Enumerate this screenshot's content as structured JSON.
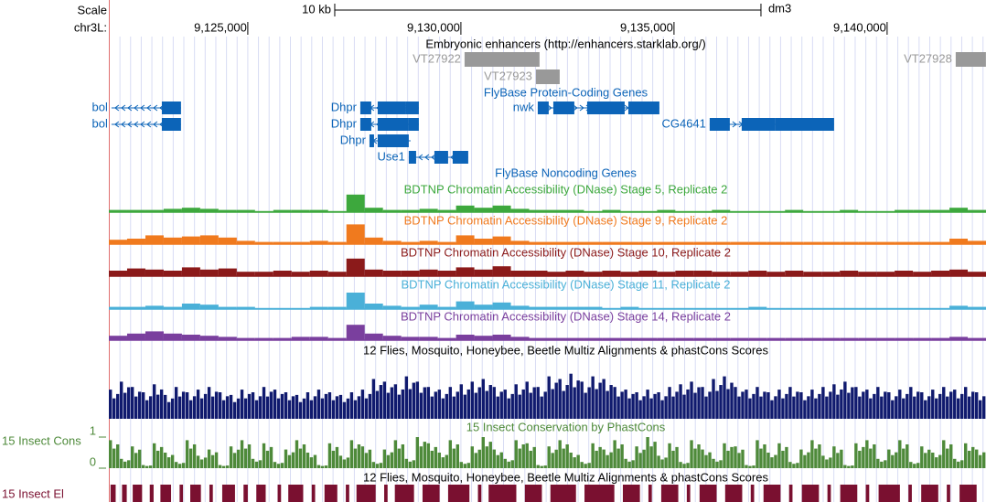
{
  "header": {
    "scale_label": "Scale",
    "chrom_label": "chr3L:",
    "assembly": "dm3"
  },
  "ruler": {
    "xlim": [
      9121740,
      9142320
    ],
    "xticks": [
      {
        "value": 9125000,
        "label": "9,125,000"
      },
      {
        "value": 9130000,
        "label": "9,130,000"
      },
      {
        "value": 9135000,
        "label": "9,135,000"
      },
      {
        "value": 9140000,
        "label": "9,140,000"
      }
    ],
    "scale_bar": {
      "label": "10 kb",
      "start": 9127040,
      "end": 9137040
    }
  },
  "tracks": [
    {
      "type": "bed",
      "title": "Embryonic enhancers (http://enhancers.starklab.org/)",
      "color": "#999999",
      "features": [
        {
          "name": "VT27922",
          "start": 9130086,
          "end": 9131845
        },
        {
          "name": "VT27923",
          "start": 9131760,
          "end": 9132318
        },
        {
          "name": "VT27928",
          "start": 9141609,
          "end": 9142318
        }
      ]
    },
    {
      "type": "genes",
      "title": "FlyBase Protein-Coding Genes",
      "color": "#0c64b8",
      "genes": [
        {
          "name": "bol",
          "strand": "-",
          "start": 9121802,
          "end": 9123433,
          "exons": [
            [
              9122983,
              9123433
            ]
          ]
        },
        {
          "name": "bol",
          "strand": "-",
          "start": 9121802,
          "end": 9123433,
          "exons": [
            [
              9122983,
              9123433
            ]
          ]
        },
        {
          "name": "Dhpr",
          "strand": "-",
          "start": 9127640,
          "end": 9129013,
          "exons": [
            [
              9127640,
              9127897
            ],
            [
              9128047,
              9128713
            ],
            [
              9128713,
              9129013
            ]
          ]
        },
        {
          "name": "Dhpr",
          "strand": "-",
          "start": 9127640,
          "end": 9129013,
          "exons": [
            [
              9127640,
              9127897
            ],
            [
              9128047,
              9128777
            ],
            [
              9128777,
              9129013
            ]
          ]
        },
        {
          "name": "Dhpr",
          "strand": "-",
          "start": 9127855,
          "end": 9128820,
          "exons": [
            [
              9127855,
              9127962
            ],
            [
              9128047,
              9128777
            ]
          ]
        },
        {
          "name": "Use1",
          "strand": "-",
          "start": 9128777,
          "end": 9130172,
          "exons": [
            [
              9128777,
              9128949
            ],
            [
              9129378,
              9129700
            ],
            [
              9129807,
              9130172
            ]
          ]
        },
        {
          "name": "nwk",
          "strand": "+",
          "start": 9131803,
          "end": 9134657,
          "exons": [
            [
              9131803,
              9132060
            ],
            [
              9132168,
              9132661
            ],
            [
              9132962,
              9133842
            ],
            [
              9133928,
              9134657
            ]
          ]
        },
        {
          "name": "CG4641",
          "strand": "+",
          "start": 9135837,
          "end": 9138756,
          "exons": [
            [
              9135837,
              9136309
            ],
            [
              9136588,
              9137382
            ],
            [
              9137382,
              9138756
            ]
          ]
        }
      ]
    },
    {
      "type": "genes",
      "title": "FlyBase Noncoding Genes",
      "color": "#0c64b8",
      "genes": []
    },
    {
      "type": "wiggle",
      "title": "BDTNP Chromatin Accessibility (DNase) Stage 5, Replicate 2",
      "color": "#3da83d",
      "values": [
        2,
        2,
        2,
        3,
        4,
        3,
        2,
        2,
        1,
        2,
        2,
        2,
        1,
        16,
        4,
        2,
        2,
        3,
        2,
        6,
        4,
        6,
        3,
        2,
        2,
        2,
        1,
        2,
        1,
        1,
        2,
        1,
        1,
        2,
        1,
        1,
        1,
        2,
        1,
        1,
        2,
        1,
        1,
        2,
        2,
        2,
        4,
        2
      ]
    },
    {
      "type": "wiggle",
      "title": "BDTNP Chromatin Accessibility (DNase) Stage 9, Replicate 2",
      "color": "#f07a1e",
      "values": [
        4,
        5,
        8,
        6,
        7,
        8,
        6,
        3,
        2,
        2,
        2,
        3,
        2,
        18,
        6,
        3,
        2,
        3,
        2,
        8,
        5,
        7,
        3,
        2,
        2,
        2,
        2,
        2,
        2,
        2,
        2,
        2,
        2,
        2,
        2,
        2,
        2,
        2,
        2,
        2,
        2,
        2,
        2,
        2,
        2,
        2,
        5,
        3
      ]
    },
    {
      "type": "wiggle",
      "title": "BDTNP Chromatin Accessibility (DNase) Stage 10, Replicate 2",
      "color": "#8b1a1a",
      "values": [
        5,
        7,
        6,
        5,
        8,
        6,
        7,
        4,
        4,
        5,
        4,
        5,
        4,
        16,
        6,
        5,
        5,
        6,
        5,
        8,
        6,
        9,
        5,
        5,
        4,
        5,
        4,
        5,
        4,
        5,
        4,
        5,
        5,
        4,
        4,
        5,
        4,
        5,
        4,
        4,
        5,
        4,
        4,
        5,
        4,
        5,
        6,
        4
      ]
    },
    {
      "type": "wiggle",
      "title": "BDTNP Chromatin Accessibility (DNase) Stage 11, Replicate 2",
      "color": "#4ab0d8",
      "values": [
        2,
        2,
        3,
        2,
        5,
        4,
        2,
        2,
        1,
        1,
        1,
        2,
        2,
        15,
        5,
        3,
        2,
        4,
        2,
        7,
        4,
        6,
        3,
        2,
        2,
        2,
        2,
        1,
        2,
        1,
        1,
        1,
        1,
        1,
        1,
        2,
        1,
        1,
        1,
        1,
        1,
        1,
        1,
        1,
        1,
        1,
        3,
        2
      ]
    },
    {
      "type": "wiggle",
      "title": "BDTNP Chromatin Accessibility (DNase) Stage 14, Replicate 2",
      "color": "#7a3f9e",
      "values": [
        4,
        6,
        8,
        6,
        5,
        4,
        3,
        2,
        2,
        2,
        3,
        3,
        2,
        14,
        6,
        4,
        3,
        3,
        2,
        5,
        4,
        5,
        3,
        2,
        2,
        2,
        2,
        2,
        2,
        2,
        2,
        2,
        2,
        2,
        2,
        2,
        2,
        2,
        2,
        2,
        2,
        2,
        2,
        2,
        2,
        2,
        3,
        2
      ]
    },
    {
      "type": "bars",
      "title": "12 Flies, Mosquito, Honeybee, Beetle Multiz Alignments & phastCons Scores",
      "color": "#101a6e",
      "values": [
        0.55,
        0.7,
        0.6,
        0.5,
        0.65,
        0.45,
        0.6,
        0.5,
        0.55,
        0.6,
        0.5,
        0.45,
        0.55,
        0.5,
        0.6,
        0.55,
        0.5,
        0.45,
        0.5,
        0.55,
        0.5,
        0.45,
        0.5,
        0.55,
        0.75,
        0.7,
        0.65,
        0.8,
        0.7,
        0.6,
        0.55,
        0.6,
        0.65,
        0.7,
        0.75,
        0.6,
        0.55,
        0.65,
        0.7,
        0.6,
        0.8,
        0.75,
        0.85,
        0.7,
        0.8,
        0.75,
        0.6,
        0.55,
        0.5,
        0.55,
        0.5,
        0.6,
        0.65,
        0.7,
        0.6,
        0.75,
        0.8,
        0.6,
        0.55,
        0.6,
        0.5,
        0.55,
        0.6,
        0.5,
        0.55,
        0.6,
        0.65,
        0.7,
        0.6,
        0.55,
        0.6,
        0.5,
        0.55,
        0.6,
        0.5,
        0.55,
        0.6,
        0.55,
        0.6,
        0.5
      ]
    },
    {
      "type": "bars",
      "title": "15 Insect Conservation by PhastCons",
      "side_label": "15 Insect Cons",
      "color": "#4e8a3a",
      "ylim": [
        0,
        1
      ],
      "yticks": [
        0,
        1
      ],
      "values": [
        0.9,
        0.3,
        0.7,
        0.1,
        0.8,
        0.5,
        0.2,
        0.9,
        0.4,
        0.6,
        0.1,
        0.7,
        0.9,
        0.3,
        0.8,
        0.2,
        0.6,
        0.9,
        0.5,
        0.1,
        0.8,
        0.4,
        0.9,
        0.7,
        0.2,
        0.6,
        0.9,
        0.3,
        1,
        0.8,
        0.5,
        0.9,
        0.2,
        0.7,
        1,
        0.6,
        0.3,
        0.9,
        0.8,
        0.1,
        0.7,
        0.9,
        0.5,
        0.2,
        0.8,
        0.6,
        0.9,
        0.3,
        0.7,
        1,
        0.4,
        0.8,
        0.2,
        0.9,
        0.6,
        0.3,
        0.8,
        0.7,
        0.1,
        0.9,
        0.5,
        0.8,
        0.2,
        0.6,
        0.9,
        0.4,
        0.7,
        0.1,
        0.8,
        0.9,
        0.3,
        0.6,
        0.9,
        0.2,
        0.7,
        0.5,
        0.9,
        0.3,
        0.8,
        0.6
      ]
    },
    {
      "type": "elements",
      "title": "12 Flies, Mosquito, Honeybee, Beetle Multiz Alignments & phastCons Scores",
      "side_label": "15 Insect El",
      "color": "#7a1030",
      "features": [
        [
          9121780,
          9121900
        ],
        [
          9122050,
          9122160
        ],
        [
          9122300,
          9122520
        ],
        [
          9122700,
          9122790
        ],
        [
          9122950,
          9123200
        ],
        [
          9123400,
          9123480
        ],
        [
          9123650,
          9123900
        ],
        [
          9124100,
          9124180
        ],
        [
          9124400,
          9124700
        ],
        [
          9124900,
          9125000
        ],
        [
          9125200,
          9125420
        ],
        [
          9125700,
          9125780
        ],
        [
          9125950,
          9126300
        ],
        [
          9126500,
          9126580
        ],
        [
          9126800,
          9127100
        ],
        [
          9127300,
          9127380
        ],
        [
          9127550,
          9128000
        ],
        [
          9128200,
          9128280
        ],
        [
          9128450,
          9128900
        ],
        [
          9129100,
          9129500
        ],
        [
          9129700,
          9130200
        ],
        [
          9130400,
          9130480
        ],
        [
          9130650,
          9131300
        ],
        [
          9131500,
          9131900
        ],
        [
          9132100,
          9132700
        ],
        [
          9132900,
          9133600
        ],
        [
          9133800,
          9134200
        ],
        [
          9134400,
          9134480
        ],
        [
          9134700,
          9135100
        ],
        [
          9135300,
          9135380
        ],
        [
          9135600,
          9136000
        ],
        [
          9136200,
          9136600
        ],
        [
          9136800,
          9136880
        ],
        [
          9137100,
          9137500
        ],
        [
          9137700,
          9137780
        ],
        [
          9138000,
          9138400
        ],
        [
          9138600,
          9138680
        ],
        [
          9138900,
          9139300
        ],
        [
          9139500,
          9139580
        ],
        [
          9139800,
          9140300
        ],
        [
          9140500,
          9140580
        ],
        [
          9140800,
          9141200
        ],
        [
          9141400,
          9141480
        ],
        [
          9141700,
          9142100
        ]
      ]
    }
  ]
}
